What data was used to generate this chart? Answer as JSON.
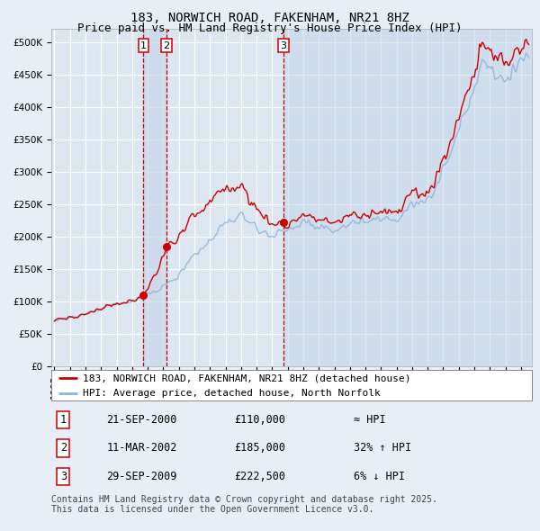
{
  "title": "183, NORWICH ROAD, FAKENHAM, NR21 8HZ",
  "subtitle": "Price paid vs. HM Land Registry's House Price Index (HPI)",
  "ylim": [
    0,
    520000
  ],
  "yticks": [
    0,
    50000,
    100000,
    150000,
    200000,
    250000,
    300000,
    350000,
    400000,
    450000,
    500000
  ],
  "ytick_labels": [
    "£0",
    "£50K",
    "£100K",
    "£150K",
    "£200K",
    "£250K",
    "£300K",
    "£350K",
    "£400K",
    "£450K",
    "£500K"
  ],
  "bg_color": "#e8eef5",
  "plot_bg_color": "#dce6f0",
  "grid_color": "#ffffff",
  "red_line_color": "#cc0000",
  "blue_line_color": "#89b4d9",
  "sale_marker_color": "#cc0000",
  "dashed_line_color": "#cc0000",
  "shade_color": "#c5d5e8",
  "transactions": [
    {
      "date_num": 2000.73,
      "price": 110000,
      "label": "1"
    },
    {
      "date_num": 2002.19,
      "price": 185000,
      "label": "2"
    },
    {
      "date_num": 2009.74,
      "price": 222500,
      "label": "3"
    }
  ],
  "legend_entries": [
    "183, NORWICH ROAD, FAKENHAM, NR21 8HZ (detached house)",
    "HPI: Average price, detached house, North Norfolk"
  ],
  "table_rows": [
    {
      "num": "1",
      "date": "21-SEP-2000",
      "price": "£110,000",
      "hpi": "≈ HPI"
    },
    {
      "num": "2",
      "date": "11-MAR-2002",
      "price": "£185,000",
      "hpi": "32% ↑ HPI"
    },
    {
      "num": "3",
      "date": "29-SEP-2009",
      "price": "£222,500",
      "hpi": "6% ↓ HPI"
    }
  ],
  "footer": "Contains HM Land Registry data © Crown copyright and database right 2025.\nThis data is licensed under the Open Government Licence v3.0.",
  "title_fontsize": 10,
  "subtitle_fontsize": 9,
  "tick_fontsize": 7.5,
  "legend_fontsize": 8,
  "table_fontsize": 8.5,
  "footer_fontsize": 7
}
